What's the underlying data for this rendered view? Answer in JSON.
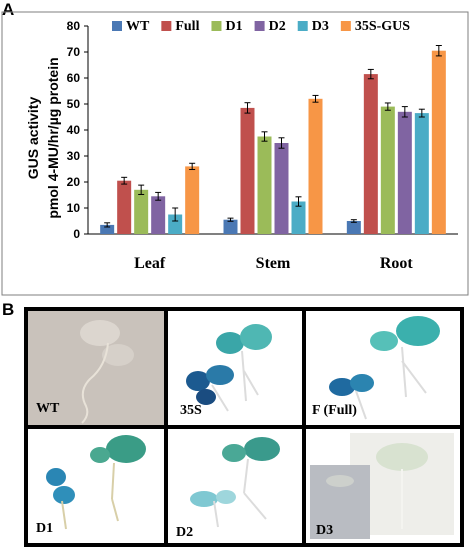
{
  "panel_a_label": "A",
  "panel_b_label": "B",
  "chart_data": {
    "type": "bar",
    "categories": [
      "Leaf",
      "Stem",
      "Root"
    ],
    "ylabel_line1": "GUS activity",
    "ylabel_line2": "pmol 4-MU/hr/µg protein",
    "ylim": [
      0,
      80
    ],
    "yticks": [
      "0",
      "10",
      "20",
      "30",
      "40",
      "50",
      "60",
      "70",
      "80"
    ],
    "legend_position": "top",
    "error_bars": true,
    "series": [
      {
        "name": "WT",
        "color": "#4a78b4",
        "values": [
          3.5,
          5.5,
          5
        ],
        "errors": [
          0.8,
          0.6,
          0.5
        ]
      },
      {
        "name": "Full",
        "color": "#c0504d",
        "values": [
          20.5,
          48.5,
          61.5
        ],
        "errors": [
          1.3,
          2.0,
          1.8
        ]
      },
      {
        "name": "D1",
        "color": "#9bbb59",
        "values": [
          17,
          37.5,
          49
        ],
        "errors": [
          1.8,
          1.8,
          1.4
        ]
      },
      {
        "name": "D2",
        "color": "#8064a2",
        "values": [
          14.5,
          35,
          47
        ],
        "errors": [
          1.5,
          2.0,
          2.0
        ]
      },
      {
        "name": "D3",
        "color": "#4bacc6",
        "values": [
          7.5,
          12.5,
          46.5
        ],
        "errors": [
          2.5,
          1.8,
          1.5
        ]
      },
      {
        "name": "35S-GUS",
        "color": "#f79646",
        "values": [
          26,
          52,
          70.5
        ],
        "errors": [
          1.2,
          1.3,
          2.0
        ]
      }
    ]
  },
  "photos": [
    {
      "label": "WT",
      "bg": "#c7c0b8"
    },
    {
      "label": "35S",
      "bg": "#ffffff"
    },
    {
      "label": "F (Full)",
      "bg": "#ffffff"
    },
    {
      "label": "D1",
      "bg": "#ffffff"
    },
    {
      "label": "D2",
      "bg": "#ffffff"
    },
    {
      "label": "D3",
      "bg": "#ffffff"
    }
  ]
}
